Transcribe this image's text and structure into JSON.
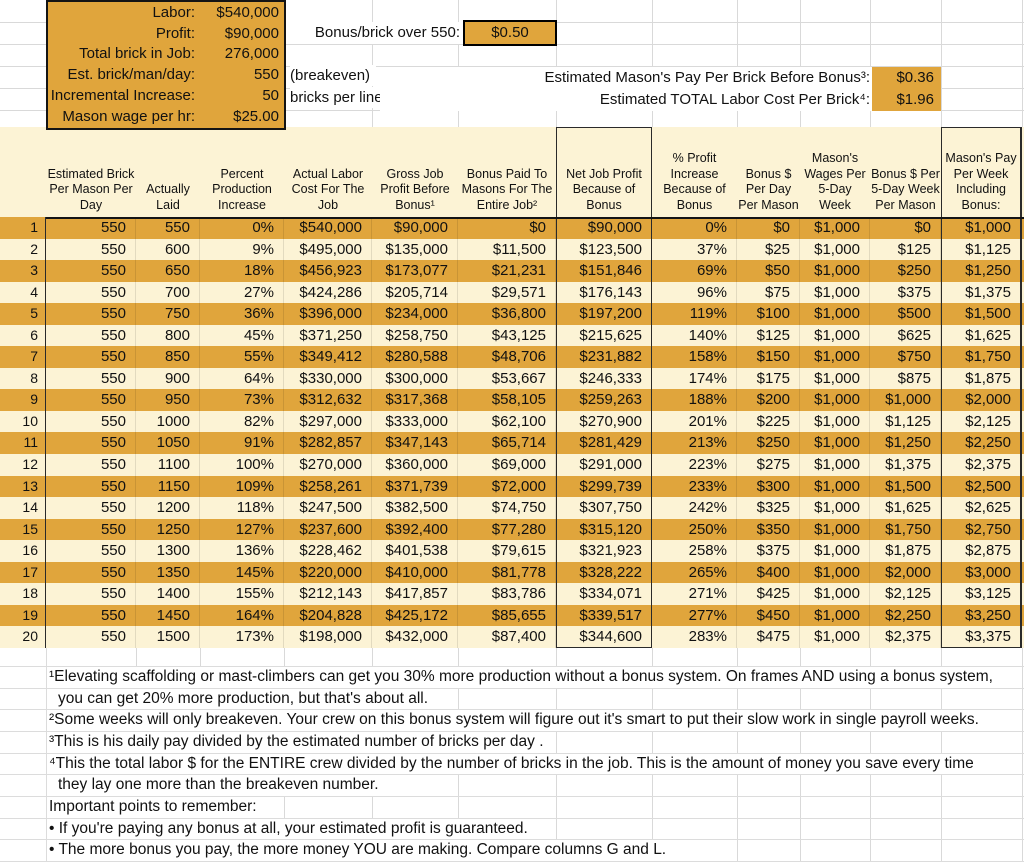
{
  "colors": {
    "gold": "#E0A53C",
    "cream": "#FCF3D5",
    "grid": "#D9D9D9",
    "border": "#141414"
  },
  "top": {
    "params": [
      {
        "label": "Labor:",
        "value": "$540,000"
      },
      {
        "label": "Profit:",
        "value": "$90,000"
      },
      {
        "label": "Total brick in Job:",
        "value": "276,000"
      },
      {
        "label": "Est. brick/man/day:",
        "value": "550"
      },
      {
        "label": "Incremental Increase:",
        "value": "50"
      },
      {
        "label": "Mason wage per hr:",
        "value": "$25.00"
      }
    ],
    "bonus_label": "Bonus/brick over 550:",
    "bonus_value": "$0.50",
    "breakeven_note": "(breakeven)",
    "increment_note": "bricks per line below.",
    "pay_per_brick_label": "Estimated Mason's Pay Per Brick Before Bonus³:",
    "pay_per_brick_value": "$0.36",
    "labor_cost_label": "Estimated TOTAL Labor Cost Per Brick⁴:",
    "labor_cost_value": "$1.96"
  },
  "table": {
    "headers": [
      "Estimated Brick Per Mason Per Day",
      "Actually Laid",
      "Percent Production Increase",
      "Actual Labor Cost For The Job",
      "Gross Job Profit Before Bonus¹",
      "Bonus Paid To Masons For The Entire Job²",
      "Net Job Profit Because of Bonus",
      "% Profit Increase Because of Bonus",
      "Bonus $ Per Day Per Mason",
      "Mason's Wages Per 5-Day Week",
      "Bonus $ Per 5-Day Week Per Mason",
      "Mason's Pay Per Week Including Bonus:"
    ],
    "rows": [
      {
        "num": "1",
        "cells": [
          "550",
          "550",
          "0%",
          "$540,000",
          "$90,000",
          "$0",
          "$90,000",
          "0%",
          "$0",
          "$1,000",
          "$0",
          "$1,000"
        ]
      },
      {
        "num": "2",
        "cells": [
          "550",
          "600",
          "9%",
          "$495,000",
          "$135,000",
          "$11,500",
          "$123,500",
          "37%",
          "$25",
          "$1,000",
          "$125",
          "$1,125"
        ]
      },
      {
        "num": "3",
        "cells": [
          "550",
          "650",
          "18%",
          "$456,923",
          "$173,077",
          "$21,231",
          "$151,846",
          "69%",
          "$50",
          "$1,000",
          "$250",
          "$1,250"
        ]
      },
      {
        "num": "4",
        "cells": [
          "550",
          "700",
          "27%",
          "$424,286",
          "$205,714",
          "$29,571",
          "$176,143",
          "96%",
          "$75",
          "$1,000",
          "$375",
          "$1,375"
        ]
      },
      {
        "num": "5",
        "cells": [
          "550",
          "750",
          "36%",
          "$396,000",
          "$234,000",
          "$36,800",
          "$197,200",
          "119%",
          "$100",
          "$1,000",
          "$500",
          "$1,500"
        ]
      },
      {
        "num": "6",
        "cells": [
          "550",
          "800",
          "45%",
          "$371,250",
          "$258,750",
          "$43,125",
          "$215,625",
          "140%",
          "$125",
          "$1,000",
          "$625",
          "$1,625"
        ]
      },
      {
        "num": "7",
        "cells": [
          "550",
          "850",
          "55%",
          "$349,412",
          "$280,588",
          "$48,706",
          "$231,882",
          "158%",
          "$150",
          "$1,000",
          "$750",
          "$1,750"
        ]
      },
      {
        "num": "8",
        "cells": [
          "550",
          "900",
          "64%",
          "$330,000",
          "$300,000",
          "$53,667",
          "$246,333",
          "174%",
          "$175",
          "$1,000",
          "$875",
          "$1,875"
        ]
      },
      {
        "num": "9",
        "cells": [
          "550",
          "950",
          "73%",
          "$312,632",
          "$317,368",
          "$58,105",
          "$259,263",
          "188%",
          "$200",
          "$1,000",
          "$1,000",
          "$2,000"
        ]
      },
      {
        "num": "10",
        "cells": [
          "550",
          "1000",
          "82%",
          "$297,000",
          "$333,000",
          "$62,100",
          "$270,900",
          "201%",
          "$225",
          "$1,000",
          "$1,125",
          "$2,125"
        ]
      },
      {
        "num": "11",
        "cells": [
          "550",
          "1050",
          "91%",
          "$282,857",
          "$347,143",
          "$65,714",
          "$281,429",
          "213%",
          "$250",
          "$1,000",
          "$1,250",
          "$2,250"
        ]
      },
      {
        "num": "12",
        "cells": [
          "550",
          "1100",
          "100%",
          "$270,000",
          "$360,000",
          "$69,000",
          "$291,000",
          "223%",
          "$275",
          "$1,000",
          "$1,375",
          "$2,375"
        ]
      },
      {
        "num": "13",
        "cells": [
          "550",
          "1150",
          "109%",
          "$258,261",
          "$371,739",
          "$72,000",
          "$299,739",
          "233%",
          "$300",
          "$1,000",
          "$1,500",
          "$2,500"
        ]
      },
      {
        "num": "14",
        "cells": [
          "550",
          "1200",
          "118%",
          "$247,500",
          "$382,500",
          "$74,750",
          "$307,750",
          "242%",
          "$325",
          "$1,000",
          "$1,625",
          "$2,625"
        ]
      },
      {
        "num": "15",
        "cells": [
          "550",
          "1250",
          "127%",
          "$237,600",
          "$392,400",
          "$77,280",
          "$315,120",
          "250%",
          "$350",
          "$1,000",
          "$1,750",
          "$2,750"
        ]
      },
      {
        "num": "16",
        "cells": [
          "550",
          "1300",
          "136%",
          "$228,462",
          "$401,538",
          "$79,615",
          "$321,923",
          "258%",
          "$375",
          "$1,000",
          "$1,875",
          "$2,875"
        ]
      },
      {
        "num": "17",
        "cells": [
          "550",
          "1350",
          "145%",
          "$220,000",
          "$410,000",
          "$81,778",
          "$328,222",
          "265%",
          "$400",
          "$1,000",
          "$2,000",
          "$3,000"
        ]
      },
      {
        "num": "18",
        "cells": [
          "550",
          "1400",
          "155%",
          "$212,143",
          "$417,857",
          "$83,786",
          "$334,071",
          "271%",
          "$425",
          "$1,000",
          "$2,125",
          "$3,125"
        ]
      },
      {
        "num": "19",
        "cells": [
          "550",
          "1450",
          "164%",
          "$204,828",
          "$425,172",
          "$85,655",
          "$339,517",
          "277%",
          "$450",
          "$1,000",
          "$2,250",
          "$3,250"
        ]
      },
      {
        "num": "20",
        "cells": [
          "550",
          "1500",
          "173%",
          "$198,000",
          "$432,000",
          "$87,400",
          "$344,600",
          "283%",
          "$475",
          "$1,000",
          "$2,375",
          "$3,375"
        ]
      }
    ]
  },
  "footnotes": [
    {
      "text": "¹Elevating scaffolding or mast-climbers can get you 30% more production without a bonus system. On frames AND using a bonus system,",
      "indent": false
    },
    {
      "text": "you can get 20% more production, but that's about all.",
      "indent": true
    },
    {
      "text": "²Some weeks will only breakeven. Your crew on this bonus system will figure out it's smart to put their slow work in single payroll weeks.",
      "indent": false
    },
    {
      "text": "³This is his daily pay divided by the estimated number of bricks per day .",
      "indent": false
    },
    {
      "text": "⁴This the total labor $ for the ENTIRE crew divided by the number of bricks in the job. This is the amount of money you save every time",
      "indent": false
    },
    {
      "text": "they lay one more than the breakeven number.",
      "indent": true
    },
    {
      "text": "Important points to remember:",
      "indent": false
    },
    {
      "text": "• If you're paying any bonus at all, your estimated profit is guaranteed.",
      "indent": false
    },
    {
      "text": "• The more bonus you pay, the more money YOU are making. Compare columns G and L.",
      "indent": false
    }
  ]
}
